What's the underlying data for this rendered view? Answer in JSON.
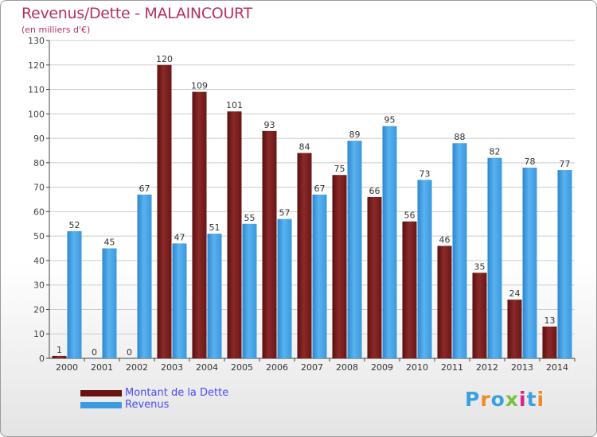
{
  "title": "Revenus/Dette - MALAINCOURT",
  "subtitle": "(en milliers d'€)",
  "logo_text": "Proxiti",
  "logo_colors": [
    "#3aa0e0",
    "#f08a24",
    "#3aa0e0",
    "#7ac040",
    "#e02080",
    "#3aa0e0",
    "#f08a24"
  ],
  "colors": {
    "dette": "#7a1e1e",
    "revenus": "#3c9ae0",
    "title": "#b5325a",
    "legend_text": "#4a4aff"
  },
  "chart_data": {
    "type": "bar",
    "title": "Revenus/Dette - MALAINCOURT",
    "subtitle": "(en milliers d'€)",
    "categories": [
      "2000",
      "2001",
      "2002",
      "2003",
      "2004",
      "2005",
      "2006",
      "2007",
      "2008",
      "2009",
      "2010",
      "2011",
      "2012",
      "2013",
      "2014"
    ],
    "series": [
      {
        "name": "Montant de la Dette",
        "values": [
          1,
          0,
          0,
          120,
          109,
          101,
          93,
          84,
          75,
          66,
          56,
          46,
          35,
          24,
          13
        ]
      },
      {
        "name": "Revenus",
        "values": [
          52,
          45,
          67,
          47,
          51,
          55,
          57,
          67,
          89,
          95,
          73,
          88,
          82,
          78,
          77
        ]
      }
    ],
    "yticks": [
      0,
      10,
      20,
      30,
      40,
      50,
      60,
      70,
      80,
      90,
      100,
      110,
      120,
      130
    ],
    "ylim": [
      0,
      130
    ],
    "grid": true,
    "legend_position": "bottom-left"
  }
}
